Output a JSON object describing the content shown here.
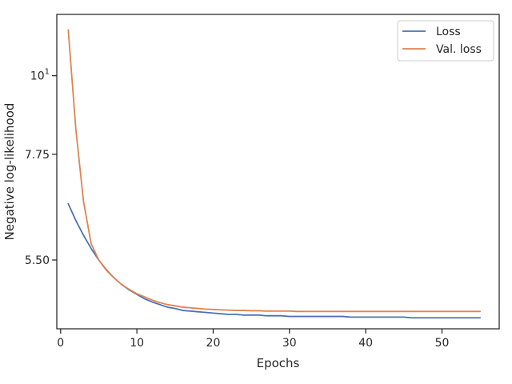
{
  "chart_data": {
    "type": "line",
    "xlabel": "Epochs",
    "ylabel": "Negative log-likelihood",
    "yscale": "log",
    "xlim": [
      -0.5,
      57.5
    ],
    "ylim": [
      4.4,
      12.2
    ],
    "x_ticks": [
      {
        "value": 0,
        "label": "0"
      },
      {
        "value": 10,
        "label": "10"
      },
      {
        "value": 20,
        "label": "20"
      },
      {
        "value": 30,
        "label": "30"
      },
      {
        "value": 40,
        "label": "40"
      },
      {
        "value": 50,
        "label": "50"
      }
    ],
    "y_ticks": [
      {
        "value": 5.5,
        "label": "5.50",
        "type": "text"
      },
      {
        "value": 7.75,
        "label": "7.75",
        "type": "text"
      },
      {
        "value": 10,
        "base": "10",
        "exp": "1",
        "type": "power"
      }
    ],
    "grid": false,
    "legend_position": "top-right",
    "colors": {
      "loss": "#4c72b0",
      "val_loss": "#dd8452",
      "axes": "#262626"
    },
    "x": [
      1,
      2,
      3,
      4,
      5,
      6,
      7,
      8,
      9,
      10,
      11,
      12,
      13,
      14,
      15,
      16,
      17,
      18,
      19,
      20,
      21,
      22,
      23,
      24,
      25,
      26,
      27,
      28,
      29,
      30,
      31,
      32,
      33,
      34,
      35,
      36,
      37,
      38,
      39,
      40,
      41,
      42,
      43,
      44,
      45,
      46,
      47,
      48,
      49,
      50,
      51,
      52,
      53,
      54,
      55
    ],
    "series": [
      {
        "name": "Loss",
        "color": "#4c72b0",
        "values": [
          6.6,
          6.25,
          5.96,
          5.71,
          5.5,
          5.33,
          5.19,
          5.08,
          4.99,
          4.92,
          4.85,
          4.8,
          4.76,
          4.72,
          4.7,
          4.67,
          4.66,
          4.65,
          4.64,
          4.63,
          4.62,
          4.61,
          4.61,
          4.6,
          4.6,
          4.6,
          4.59,
          4.59,
          4.59,
          4.58,
          4.58,
          4.58,
          4.58,
          4.58,
          4.58,
          4.58,
          4.58,
          4.57,
          4.57,
          4.57,
          4.57,
          4.57,
          4.57,
          4.57,
          4.57,
          4.56,
          4.56,
          4.56,
          4.56,
          4.56,
          4.56,
          4.56,
          4.56,
          4.56,
          4.56
        ]
      },
      {
        "name": "Val. loss",
        "color": "#dd8452",
        "values": [
          11.6,
          8.4,
          6.65,
          5.8,
          5.5,
          5.32,
          5.19,
          5.08,
          5.0,
          4.93,
          4.88,
          4.83,
          4.79,
          4.76,
          4.74,
          4.72,
          4.71,
          4.7,
          4.69,
          4.685,
          4.68,
          4.675,
          4.67,
          4.67,
          4.665,
          4.665,
          4.66,
          4.66,
          4.66,
          4.66,
          4.655,
          4.655,
          4.655,
          4.655,
          4.655,
          4.655,
          4.655,
          4.655,
          4.655,
          4.655,
          4.655,
          4.655,
          4.655,
          4.655,
          4.655,
          4.655,
          4.655,
          4.655,
          4.655,
          4.655,
          4.655,
          4.655,
          4.655,
          4.655,
          4.655
        ]
      }
    ]
  }
}
